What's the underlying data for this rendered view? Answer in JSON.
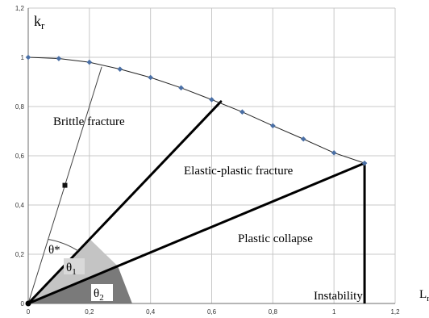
{
  "chart_data": {
    "type": "scatter",
    "xlim": [
      0,
      1.2
    ],
    "ylim": [
      0,
      1.2
    ],
    "x_ticks": [
      "0",
      "0,2",
      "0,4",
      "0,6",
      "0,8",
      "1",
      "1,2"
    ],
    "y_ticks": [
      "0",
      "0,2",
      "0,4",
      "0,6",
      "0,8",
      "1",
      "1,2"
    ],
    "ylabel": {
      "main": "k",
      "sub": "r"
    },
    "xlabel": {
      "main": "L",
      "sub": "r"
    },
    "grid": true,
    "series": [
      {
        "marker": "diamond",
        "color": "#4a6fa5",
        "x": [
          0,
          0.1,
          0.2,
          0.3,
          0.4,
          0.5,
          0.6,
          0.7,
          0.8,
          0.9,
          1.0,
          1.1
        ],
        "y": [
          1.0,
          0.995,
          0.98,
          0.952,
          0.918,
          0.876,
          0.828,
          0.778,
          0.722,
          0.668,
          0.612,
          0.57
        ]
      }
    ],
    "square_marker": {
      "x": 0.12,
      "y": 0.48
    },
    "instability_x": 1.1,
    "rays": [
      {
        "x": 0.63,
        "y": 0.82,
        "weight": "thick"
      },
      {
        "x": 1.1,
        "y": 0.57,
        "weight": "thick"
      },
      {
        "x": 0.24,
        "y": 0.96,
        "weight": "thin"
      }
    ],
    "region_labels": {
      "brittle": "Brittle fracture",
      "elastic_plastic": "Elastic-plastic fracture",
      "plastic": "Plastic  collapse",
      "instability": "Instability"
    },
    "angle_labels": {
      "theta_star": "θ*",
      "theta1": "θ",
      "theta1_sub": "1",
      "theta2": "θ",
      "theta2_sub": "2"
    },
    "colors": {
      "curve": "#4a6fa5",
      "grid": "#c8c8c8",
      "theta1_fill": "#c4c4c4",
      "theta2_fill": "#7a7a7a"
    }
  }
}
